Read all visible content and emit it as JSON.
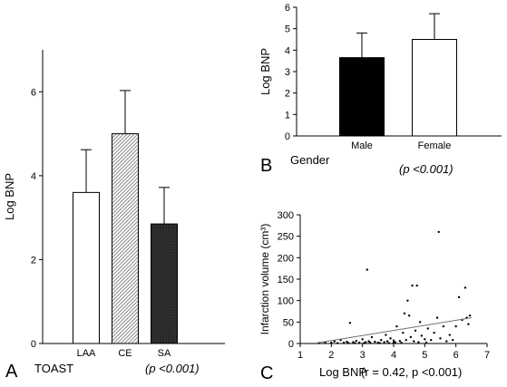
{
  "panels": [
    {
      "letter": "A",
      "xtitle": "TOAST",
      "pvalue": "(p <0.001)"
    },
    {
      "letter": "B",
      "xtitle": "Gender",
      "pvalue": "(p <0.001)"
    },
    {
      "letter": "C",
      "xtitle": "Log BNP",
      "pvalue": "(r = 0.42, p <0.001)"
    }
  ],
  "chart_data": [
    {
      "type": "bar",
      "categories": [
        "LAA",
        "CE",
        "SA"
      ],
      "values": [
        3.6,
        5.0,
        2.85
      ],
      "error_upper": [
        4.62,
        6.03,
        3.72
      ],
      "ylabel": "Log BNP",
      "xlabel": "TOAST",
      "ylim": [
        0,
        7
      ],
      "yticks": [
        0,
        2,
        4,
        6
      ],
      "bar_fills": [
        "white",
        "light-hatched",
        "dark-crosshatched"
      ],
      "annotation": "(p <0.001)",
      "panel_label": "A"
    },
    {
      "type": "bar",
      "categories": [
        "Male",
        "Female"
      ],
      "values": [
        3.65,
        4.5
      ],
      "error_upper": [
        4.8,
        5.7
      ],
      "ylabel": "Log BNP",
      "xlabel": "Gender",
      "ylim": [
        0,
        6
      ],
      "yticks": [
        0,
        1,
        2,
        3,
        4,
        5,
        6
      ],
      "bar_fills": [
        "#000000",
        "#ffffff"
      ],
      "annotation": "(p <0.001)",
      "panel_label": "B"
    },
    {
      "type": "scatter",
      "xlabel": "Log BNP",
      "ylabel": "Infarction volume (cm³)",
      "xlim": [
        1,
        7
      ],
      "ylim": [
        0,
        300
      ],
      "xticks": [
        1,
        2,
        3,
        4,
        5,
        6,
        7
      ],
      "yticks": [
        0,
        50,
        100,
        150,
        200,
        250,
        300
      ],
      "points": [
        [
          1.6,
          1
        ],
        [
          1.8,
          3
        ],
        [
          2.0,
          2
        ],
        [
          2.1,
          5
        ],
        [
          2.2,
          1
        ],
        [
          2.3,
          8
        ],
        [
          2.4,
          2
        ],
        [
          2.5,
          4
        ],
        [
          2.55,
          1
        ],
        [
          2.6,
          48
        ],
        [
          2.7,
          3
        ],
        [
          2.8,
          6
        ],
        [
          2.9,
          2
        ],
        [
          3.0,
          10
        ],
        [
          3.05,
          1
        ],
        [
          3.1,
          3
        ],
        [
          3.15,
          172
        ],
        [
          3.2,
          5
        ],
        [
          3.25,
          2
        ],
        [
          3.3,
          15
        ],
        [
          3.4,
          4
        ],
        [
          3.5,
          2
        ],
        [
          3.6,
          8
        ],
        [
          3.7,
          3
        ],
        [
          3.75,
          20
        ],
        [
          3.8,
          5
        ],
        [
          3.85,
          1
        ],
        [
          3.9,
          12
        ],
        [
          4.0,
          7
        ],
        [
          4.05,
          3
        ],
        [
          4.1,
          40
        ],
        [
          4.2,
          6
        ],
        [
          4.25,
          2
        ],
        [
          4.3,
          25
        ],
        [
          4.35,
          70
        ],
        [
          4.4,
          8
        ],
        [
          4.45,
          100
        ],
        [
          4.5,
          65
        ],
        [
          4.55,
          15
        ],
        [
          4.6,
          135
        ],
        [
          4.65,
          5
        ],
        [
          4.7,
          30
        ],
        [
          4.75,
          135
        ],
        [
          4.8,
          3
        ],
        [
          4.85,
          50
        ],
        [
          4.9,
          18
        ],
        [
          5.0,
          10
        ],
        [
          5.05,
          2
        ],
        [
          5.1,
          35
        ],
        [
          5.2,
          8
        ],
        [
          5.3,
          25
        ],
        [
          5.4,
          60
        ],
        [
          5.45,
          260
        ],
        [
          5.5,
          12
        ],
        [
          5.6,
          40
        ],
        [
          5.7,
          5
        ],
        [
          5.8,
          20
        ],
        [
          6.0,
          40
        ],
        [
          6.1,
          108
        ],
        [
          6.2,
          55
        ],
        [
          6.3,
          130
        ],
        [
          6.35,
          60
        ],
        [
          6.4,
          45
        ],
        [
          6.45,
          65
        ],
        [
          4.0,
          2
        ],
        [
          3.55,
          1
        ],
        [
          2.75,
          1
        ],
        [
          5.9,
          8
        ]
      ],
      "trendline": [
        [
          1.6,
          2
        ],
        [
          6.5,
          60
        ]
      ],
      "annotation": "(r = 0.42, p <0.001)",
      "panel_label": "C"
    }
  ]
}
